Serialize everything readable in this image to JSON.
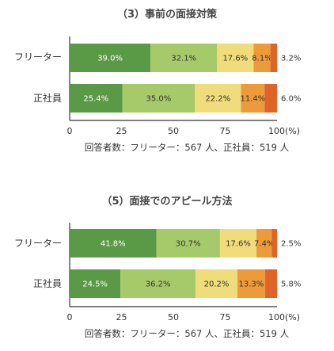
{
  "colors": [
    "#5a9a46",
    "#a6c96a",
    "#f0dc7a",
    "#ed9b3a",
    "#e06428"
  ],
  "label_colors": [
    "#ffffff",
    "#333333",
    "#333333",
    "#333333",
    "#333333"
  ],
  "chart_data": [
    {
      "type": "bar",
      "stacked": true,
      "orientation": "horizontal",
      "title": "（3）事前の面接対策",
      "categories": [
        "フリーター",
        "正社員"
      ],
      "series_values": [
        [
          39.0,
          32.1,
          17.6,
          8.1,
          3.2
        ],
        [
          25.4,
          35.0,
          22.2,
          11.4,
          6.0
        ]
      ],
      "value_labels": [
        [
          "39.0%",
          "32.1%",
          "17.6%",
          "8.1%",
          "3.2%"
        ],
        [
          "25.4%",
          "35.0%",
          "22.2%",
          "11.4%",
          "6.0%"
        ]
      ],
      "xlim": [
        0,
        100
      ],
      "ticks": [
        "0",
        "25",
        "50",
        "75",
        "100(%)"
      ],
      "footnote": "回答者数：フリーター：567 人、正社員：519 人"
    },
    {
      "type": "bar",
      "stacked": true,
      "orientation": "horizontal",
      "title": "（5）面接でのアピール方法",
      "categories": [
        "フリーター",
        "正社員"
      ],
      "series_values": [
        [
          41.8,
          30.7,
          17.6,
          7.4,
          2.5
        ],
        [
          24.5,
          36.2,
          20.2,
          13.3,
          5.8
        ]
      ],
      "value_labels": [
        [
          "41.8%",
          "30.7%",
          "17.6%",
          "7.4%",
          "2.5%"
        ],
        [
          "24.5%",
          "36.2%",
          "20.2%",
          "13.3%",
          "5.8%"
        ]
      ],
      "xlim": [
        0,
        100
      ],
      "ticks": [
        "0",
        "25",
        "50",
        "75",
        "100(%)"
      ],
      "footnote": "回答者数：フリーター：567 人、正社員：519 人"
    }
  ]
}
